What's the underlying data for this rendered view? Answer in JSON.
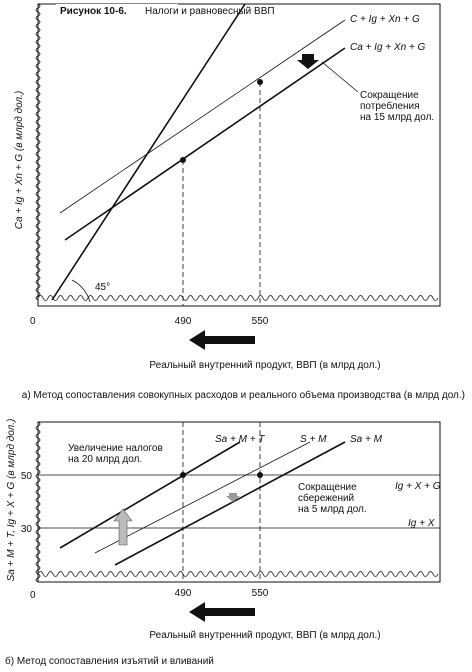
{
  "header": {
    "figure": "Рисунок 10-6.",
    "title": "Налоги и равновесный ВВП"
  },
  "panel_a": {
    "y_label": "Ca + Ig + Xn + G (в млрд дол.)",
    "lines": [
      "C + Ig + Xn + G",
      "Ca + Ig + Xn + G"
    ],
    "annotation": [
      "Сокращение",
      "потребления",
      "на 15 млрд дол."
    ],
    "angle": "45°",
    "origin": "0",
    "x_ticks": [
      "490",
      "550"
    ],
    "x_label": "Реальный внутренний продукт, ВВП (в млрд дол.)",
    "caption": "а) Метод сопоставления совокупных расходов и реального объема производства (в млрд дол.)"
  },
  "panel_b": {
    "y_label": "Sa + M + T, Ig + X + G (в млрд дол.)",
    "lines": [
      "Sa + M + T",
      "S + M",
      "Sa + M"
    ],
    "levels": [
      "Ig + X + G",
      "Ig + X"
    ],
    "y_ticks": [
      "50",
      "30"
    ],
    "annotation_left": [
      "Увеличение налогов",
      "на 20 млрд дол."
    ],
    "annotation_right": [
      "Сокращение",
      "сбережений",
      "на 5 млрд дол."
    ],
    "origin": "0",
    "x_ticks": [
      "490",
      "550"
    ],
    "x_label": "Реальный внутренний продукт, ВВП (в млрд дол.)",
    "caption": "б) Метод сопоставления изъятий и вливаний"
  }
}
